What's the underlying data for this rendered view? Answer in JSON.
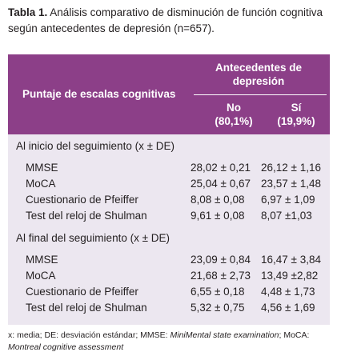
{
  "caption": {
    "label": "Tabla 1.",
    "text": "Análisis comparativo de disminución de función cognitiva según antecedentes de depresión (n=657)."
  },
  "table": {
    "header": {
      "row_label": "Puntaje de escalas cognitivas",
      "group": "Antecedentes de depresión",
      "columns": [
        {
          "name": "No",
          "share": "(80,1%)"
        },
        {
          "name": "Sí",
          "share": "(19,9%)"
        }
      ]
    },
    "sections": [
      {
        "title": "Al inicio del seguimiento (x ± DE)",
        "rows": [
          [
            "MMSE",
            "28,02 ± 0,21",
            "26,12 ± 1,16"
          ],
          [
            "MoCA",
            "25,04 ± 0,67",
            "23,57 ± 1,48"
          ],
          [
            "Cuestionario de Pfeiffer",
            "8,08 ± 0,08",
            "6,97 ± 1,09"
          ],
          [
            "Test del reloj de Shulman",
            "9,61 ± 0,08",
            "8,07 ±1,03"
          ]
        ]
      },
      {
        "title": "Al final del seguimiento (x ± DE)",
        "rows": [
          [
            "MMSE",
            "23,09 ± 0,84",
            "16,47 ± 3,84"
          ],
          [
            "MoCA",
            "21,68 ± 2,73",
            "13,49 ±2,82"
          ],
          [
            "Cuestionario de Pfeiffer",
            "6,55 ± 0,18",
            "4,48 ± 1,73"
          ],
          [
            "Test del reloj de Shulman",
            "5,32 ± 0,75",
            "4,56 ± 1,69"
          ]
        ]
      }
    ]
  },
  "footnote": [
    "x: media; DE: desviación estándar; MMSE: ",
    "MiniMental state examination",
    "; MoCA: ",
    "Montreal cognitive assessment"
  ]
}
